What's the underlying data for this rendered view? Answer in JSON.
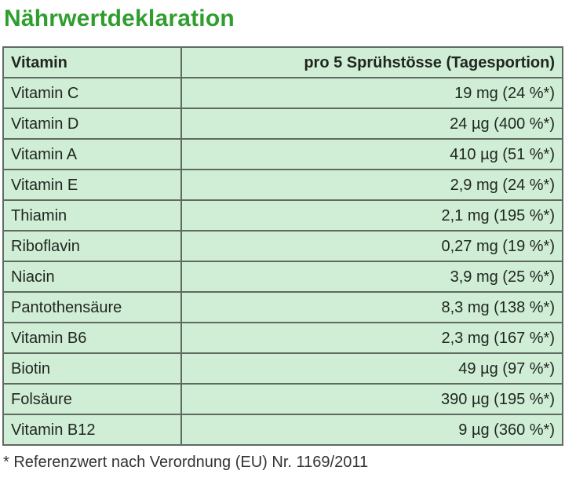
{
  "page": {
    "title": "Nährwertdeklaration",
    "footnote": "* Referenzwert nach Verordnung (EU) Nr. 1169/2011"
  },
  "colors": {
    "title_green": "#2f9e2f",
    "cell_background": "#d0edd6",
    "border": "#5f6a61",
    "cell_text": "#1f261f",
    "footnote_text": "#333333"
  },
  "table": {
    "headers": {
      "vitamin": "Vitamin",
      "amount": "pro 5 Sprühstösse (Tagesportion)"
    },
    "rows": [
      {
        "vitamin": "Vitamin C",
        "amount": "19 mg (24 %*)"
      },
      {
        "vitamin": "Vitamin D",
        "amount": "24 µg (400 %*)"
      },
      {
        "vitamin": "Vitamin A",
        "amount": "410 µg (51 %*)"
      },
      {
        "vitamin": "Vitamin E",
        "amount": "2,9 mg (24 %*)"
      },
      {
        "vitamin": "Thiamin",
        "amount": "2,1 mg (195 %*)"
      },
      {
        "vitamin": "Riboflavin",
        "amount": "0,27 mg (19 %*)"
      },
      {
        "vitamin": "Niacin",
        "amount": "3,9 mg (25 %*)"
      },
      {
        "vitamin": "Pantothensäure",
        "amount": "8,3 mg (138 %*)"
      },
      {
        "vitamin": "Vitamin B6",
        "amount": "2,3 mg (167 %*)"
      },
      {
        "vitamin": "Biotin",
        "amount": "49 µg (97 %*)"
      },
      {
        "vitamin": "Folsäure",
        "amount": "390 µg (195 %*)"
      },
      {
        "vitamin": "Vitamin B12",
        "amount": "9 µg (360 %*)"
      }
    ]
  }
}
